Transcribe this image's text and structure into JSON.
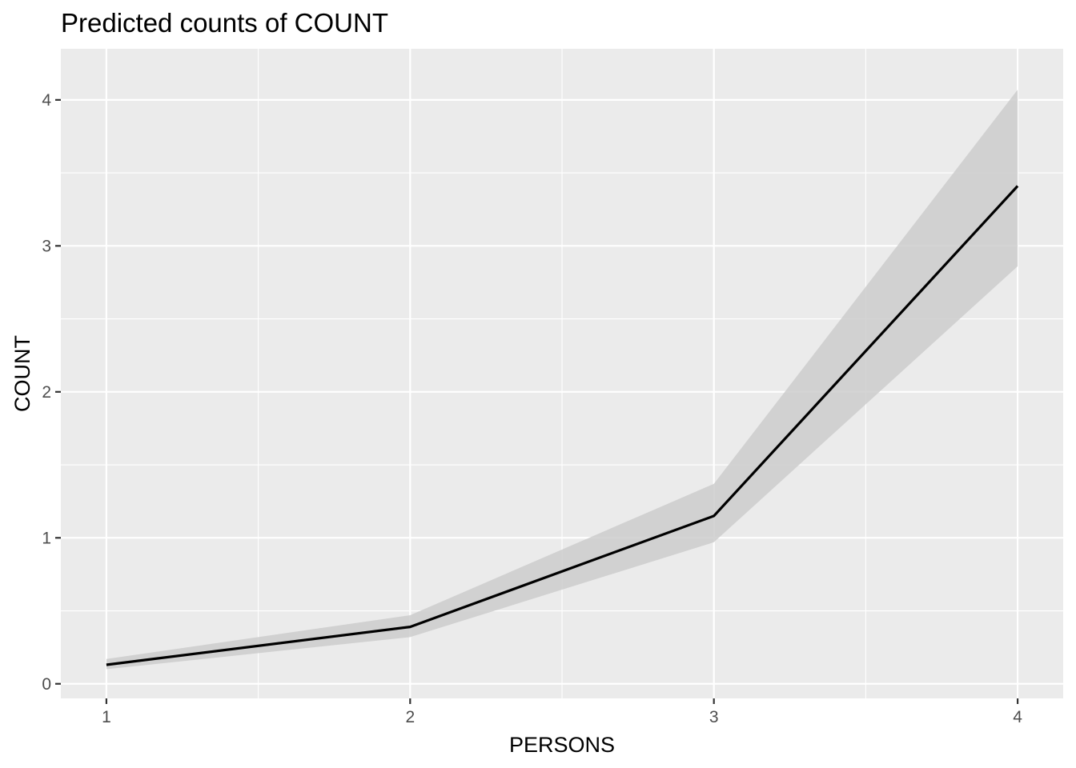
{
  "chart_data": {
    "type": "line",
    "title": "Predicted counts of COUNT",
    "xlabel": "PERSONS",
    "ylabel": "COUNT",
    "x": [
      1,
      2,
      3,
      4
    ],
    "series": [
      {
        "values": [
          0.13,
          0.39,
          1.15,
          3.41
        ],
        "lower": [
          0.1,
          0.32,
          0.97,
          2.86
        ],
        "upper": [
          0.17,
          0.47,
          1.37,
          4.07
        ]
      }
    ],
    "xticks": [
      "1",
      "2",
      "3",
      "4"
    ],
    "yticks": [
      "0",
      "1",
      "2",
      "3",
      "4"
    ],
    "xlim": [
      0.85,
      4.15
    ],
    "ylim": [
      -0.1,
      4.35
    ],
    "grid": true,
    "colors": {
      "panel": "#ebebeb",
      "grid": "#ffffff",
      "line": "#000000",
      "ribbon": "#cccccc"
    }
  }
}
